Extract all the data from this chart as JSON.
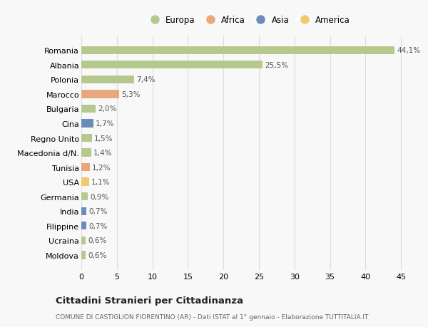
{
  "countries": [
    "Romania",
    "Albania",
    "Polonia",
    "Marocco",
    "Bulgaria",
    "Cina",
    "Regno Unito",
    "Macedonia d/N.",
    "Tunisia",
    "USA",
    "Germania",
    "India",
    "Filippine",
    "Ucraina",
    "Moldova"
  ],
  "values": [
    44.1,
    25.5,
    7.4,
    5.3,
    2.0,
    1.7,
    1.5,
    1.4,
    1.2,
    1.1,
    0.9,
    0.7,
    0.7,
    0.6,
    0.6
  ],
  "labels": [
    "44,1%",
    "25,5%",
    "7,4%",
    "5,3%",
    "2,0%",
    "1,7%",
    "1,5%",
    "1,4%",
    "1,2%",
    "1,1%",
    "0,9%",
    "0,7%",
    "0,7%",
    "0,6%",
    "0,6%"
  ],
  "continents": [
    "Europa",
    "Europa",
    "Europa",
    "Africa",
    "Europa",
    "Asia",
    "Europa",
    "Europa",
    "Africa",
    "America",
    "Europa",
    "Asia",
    "Asia",
    "Europa",
    "Europa"
  ],
  "continent_colors": {
    "Europa": "#b5c98e",
    "Africa": "#e8a87c",
    "Asia": "#6b8cba",
    "America": "#f0c96b"
  },
  "legend_order": [
    "Europa",
    "Africa",
    "Asia",
    "America"
  ],
  "title": "Cittadini Stranieri per Cittadinanza",
  "subtitle": "COMUNE DI CASTIGLION FIORENTINO (AR) - Dati ISTAT al 1° gennaio - Elaborazione TUTTITALIA.IT",
  "xlim": [
    0,
    47
  ],
  "xticks": [
    0,
    5,
    10,
    15,
    20,
    25,
    30,
    35,
    40,
    45
  ],
  "bg_color": "#f8f8f8",
  "grid_color": "#dddddd",
  "bar_height": 0.55
}
